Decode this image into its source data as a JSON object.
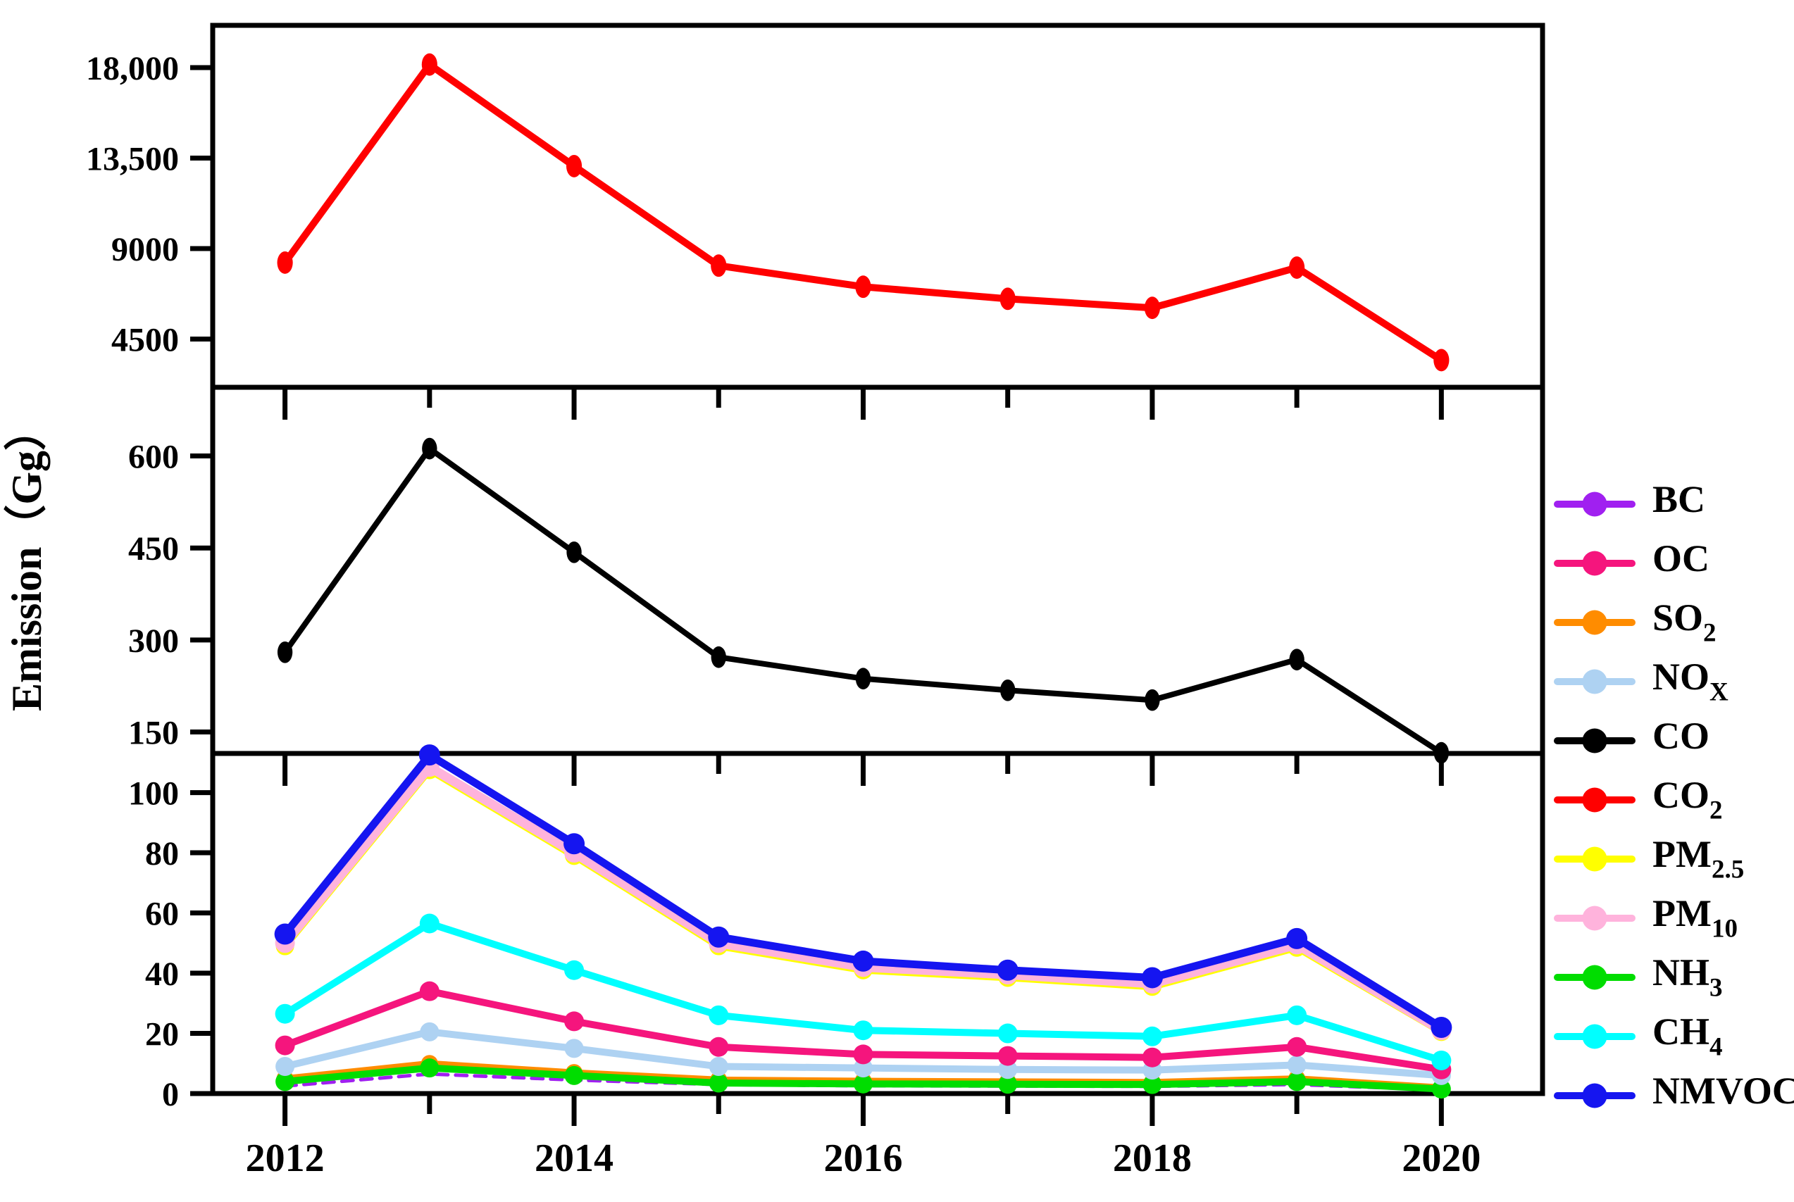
{
  "figure": {
    "background": "#ffffff",
    "axis_color": "#000000"
  },
  "chart_data": {
    "type": "line",
    "ylabel": "Emission（Gg）",
    "x": [
      2012,
      2013,
      2014,
      2015,
      2016,
      2017,
      2018,
      2019,
      2020
    ],
    "xlim": [
      2011.5,
      2020.7
    ],
    "x_ticks": [
      {
        "v": 2012,
        "label": "2012",
        "major": true
      },
      {
        "v": 2013,
        "label": "",
        "major": false
      },
      {
        "v": 2014,
        "label": "2014",
        "major": true
      },
      {
        "v": 2015,
        "label": "",
        "major": false
      },
      {
        "v": 2016,
        "label": "2016",
        "major": true
      },
      {
        "v": 2017,
        "label": "",
        "major": false
      },
      {
        "v": 2018,
        "label": "2018",
        "major": true
      },
      {
        "v": 2019,
        "label": "",
        "major": false
      },
      {
        "v": 2020,
        "label": "2020",
        "major": true
      }
    ],
    "panels": [
      {
        "id": "panel-co2",
        "ylim": [
          2100,
          20100
        ],
        "yticks": [
          {
            "v": 4500,
            "label": "4500"
          },
          {
            "v": 9000,
            "label": "9000"
          },
          {
            "v": 13500,
            "label": "13,500"
          },
          {
            "v": 18000,
            "label": "18,000"
          }
        ]
      },
      {
        "id": "panel-co",
        "ylim": [
          115,
          712
        ],
        "yticks": [
          {
            "v": 150,
            "label": "150"
          },
          {
            "v": 300,
            "label": "300"
          },
          {
            "v": 450,
            "label": "450"
          },
          {
            "v": 600,
            "label": "600"
          }
        ]
      },
      {
        "id": "panel-minor-species",
        "ylim": [
          0,
          113
        ],
        "yticks": [
          {
            "v": 0,
            "label": "0"
          },
          {
            "v": 20,
            "label": "20"
          },
          {
            "v": 40,
            "label": "40"
          },
          {
            "v": 60,
            "label": "60"
          },
          {
            "v": 80,
            "label": "80"
          },
          {
            "v": 100,
            "label": "100"
          }
        ]
      }
    ],
    "series": [
      {
        "name": "BC",
        "panel": 2,
        "color": "#A020F0",
        "width": 5,
        "dash": "16 11",
        "marker": 0,
        "values": [
          2.5,
          6.5,
          4.5,
          3.0,
          2.6,
          2.5,
          2.4,
          3.0,
          1.2
        ]
      },
      {
        "name": "SO2",
        "panel": 2,
        "color": "#FF8C00",
        "width": 9,
        "dash": "",
        "marker": 12,
        "values": [
          5.0,
          10.0,
          7.0,
          4.6,
          4.2,
          4.0,
          3.8,
          5.0,
          2.0
        ]
      },
      {
        "name": "NH3",
        "panel": 2,
        "color": "#00DD00",
        "width": 10,
        "dash": "",
        "marker": 13.5,
        "values": [
          4.0,
          8.5,
          6.0,
          3.5,
          3.2,
          3.1,
          3.0,
          4.0,
          1.5
        ]
      },
      {
        "name": "NOx",
        "panel": 2,
        "color": "#AED2F2",
        "width": 10,
        "dash": "",
        "marker": 13.5,
        "values": [
          9.0,
          20.5,
          15.0,
          9.0,
          8.5,
          8.0,
          7.8,
          9.5,
          6.0
        ]
      },
      {
        "name": "OC",
        "panel": 2,
        "color": "#F5157D",
        "width": 10,
        "dash": "",
        "marker": 14,
        "values": [
          16.0,
          34.0,
          24.0,
          15.5,
          13.0,
          12.5,
          12.0,
          15.5,
          8.0
        ]
      },
      {
        "name": "CH4",
        "panel": 2,
        "color": "#00FFFF",
        "width": 10,
        "dash": "",
        "marker": 14,
        "values": [
          26.5,
          56.5,
          41.0,
          26.0,
          21.0,
          20.0,
          19.0,
          26.0,
          11.0
        ]
      },
      {
        "name": "PM2.5",
        "panel": 2,
        "color": "#FFFF00",
        "width": 10,
        "dash": "",
        "marker": 13,
        "values": [
          49.0,
          107.5,
          79.0,
          49.0,
          41.0,
          38.5,
          35.5,
          48.5,
          20.5
        ]
      },
      {
        "name": "PM10",
        "panel": 2,
        "color": "#FFB3DC",
        "width": 13,
        "dash": "",
        "marker": 14,
        "values": [
          50.0,
          108.5,
          80.0,
          50.0,
          42.0,
          39.5,
          36.5,
          49.5,
          21.0
        ]
      },
      {
        "name": "NMVOC",
        "panel": 2,
        "color": "#1515F0",
        "width": 11,
        "dash": "",
        "marker": 15,
        "values": [
          53.0,
          112.5,
          83.0,
          52.0,
          44.0,
          41.0,
          38.5,
          51.5,
          22.0
        ]
      },
      {
        "name": "CO",
        "panel": 1,
        "color": "#000000",
        "width": 8,
        "dash": "",
        "marker": 13,
        "values": [
          280,
          612,
          443,
          272,
          237,
          218,
          202,
          268,
          116
        ]
      },
      {
        "name": "CO2",
        "panel": 0,
        "color": "#FF0000",
        "width": 10,
        "dash": "",
        "marker": 13.5,
        "values": [
          8300,
          18150,
          13100,
          8150,
          7100,
          6500,
          6050,
          8050,
          3450
        ]
      }
    ],
    "legend_position": "right"
  },
  "legend": {
    "items": [
      {
        "key": "bc",
        "main": "BC",
        "sub": "",
        "color": "#A020F0"
      },
      {
        "key": "oc",
        "main": "OC",
        "sub": "",
        "color": "#F5157D"
      },
      {
        "key": "so2",
        "main": "SO",
        "sub": "2",
        "color": "#FF8C00"
      },
      {
        "key": "nox",
        "main": "NO",
        "sub": "X",
        "color": "#AED2F2"
      },
      {
        "key": "co",
        "main": "CO",
        "sub": "",
        "color": "#000000"
      },
      {
        "key": "co2",
        "main": "CO",
        "sub": "2",
        "color": "#FF0000"
      },
      {
        "key": "pm25",
        "main": "PM",
        "sub": "2.5",
        "color": "#FFFF00"
      },
      {
        "key": "pm10",
        "main": "PM",
        "sub": "10",
        "color": "#FFB3DC"
      },
      {
        "key": "nh3",
        "main": "NH",
        "sub": "3",
        "color": "#00DD00"
      },
      {
        "key": "ch4",
        "main": "CH",
        "sub": "4",
        "color": "#00FFFF"
      },
      {
        "key": "nmvoc",
        "main": "NMVOC",
        "sub": "",
        "color": "#1515F0"
      }
    ]
  }
}
